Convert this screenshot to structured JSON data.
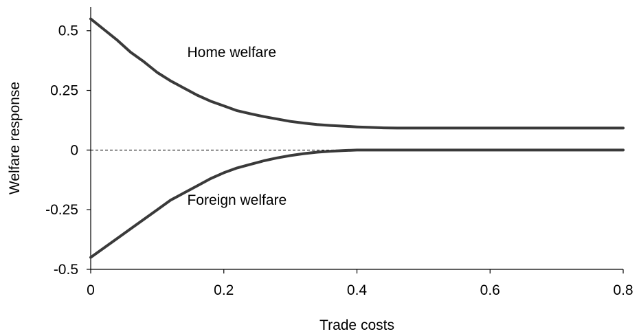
{
  "chart_data": {
    "type": "line",
    "title": "",
    "xlabel": "Trade costs",
    "ylabel": "Welfare response",
    "xlim": [
      0,
      0.8
    ],
    "ylim": [
      -0.5,
      0.6
    ],
    "x_ticks": [
      0,
      0.2,
      0.4,
      0.6,
      0.8
    ],
    "x_tick_labels": [
      "0",
      "0.2",
      "0.4",
      "0.6",
      "0.8"
    ],
    "y_ticks": [
      0.5,
      0.25,
      0,
      -0.25,
      -0.5
    ],
    "y_tick_labels": [
      "0.5",
      "0.25",
      "0",
      "-0.25",
      "-0.5"
    ],
    "grid": false,
    "reference_line": {
      "y": 0,
      "style": "dashed"
    },
    "series": [
      {
        "name": "Home welfare",
        "x": [
          0,
          0.02,
          0.04,
          0.06,
          0.08,
          0.1,
          0.12,
          0.14,
          0.16,
          0.18,
          0.2,
          0.22,
          0.24,
          0.26,
          0.28,
          0.3,
          0.32,
          0.34,
          0.36,
          0.38,
          0.4,
          0.42,
          0.44,
          0.46,
          0.5,
          0.6,
          0.7,
          0.8
        ],
        "values": [
          0.55,
          0.505,
          0.46,
          0.41,
          0.37,
          0.325,
          0.29,
          0.26,
          0.23,
          0.205,
          0.185,
          0.165,
          0.152,
          0.14,
          0.13,
          0.12,
          0.113,
          0.107,
          0.103,
          0.1,
          0.097,
          0.095,
          0.093,
          0.092,
          0.092,
          0.092,
          0.092,
          0.092
        ]
      },
      {
        "name": "Foreign welfare",
        "x": [
          0,
          0.02,
          0.04,
          0.06,
          0.08,
          0.1,
          0.12,
          0.14,
          0.16,
          0.18,
          0.2,
          0.22,
          0.24,
          0.26,
          0.28,
          0.3,
          0.32,
          0.34,
          0.36,
          0.38,
          0.4,
          0.42,
          0.5,
          0.6,
          0.7,
          0.8
        ],
        "values": [
          -0.45,
          -0.41,
          -0.37,
          -0.33,
          -0.29,
          -0.25,
          -0.21,
          -0.18,
          -0.15,
          -0.12,
          -0.095,
          -0.075,
          -0.06,
          -0.045,
          -0.033,
          -0.023,
          -0.015,
          -0.009,
          -0.005,
          -0.002,
          0,
          0,
          0,
          0,
          0,
          0
        ]
      }
    ],
    "series_label_positions": [
      {
        "series": "Home welfare",
        "x": 0.145,
        "y": 0.39
      },
      {
        "series": "Foreign welfare",
        "x": 0.145,
        "y": -0.23
      }
    ]
  }
}
